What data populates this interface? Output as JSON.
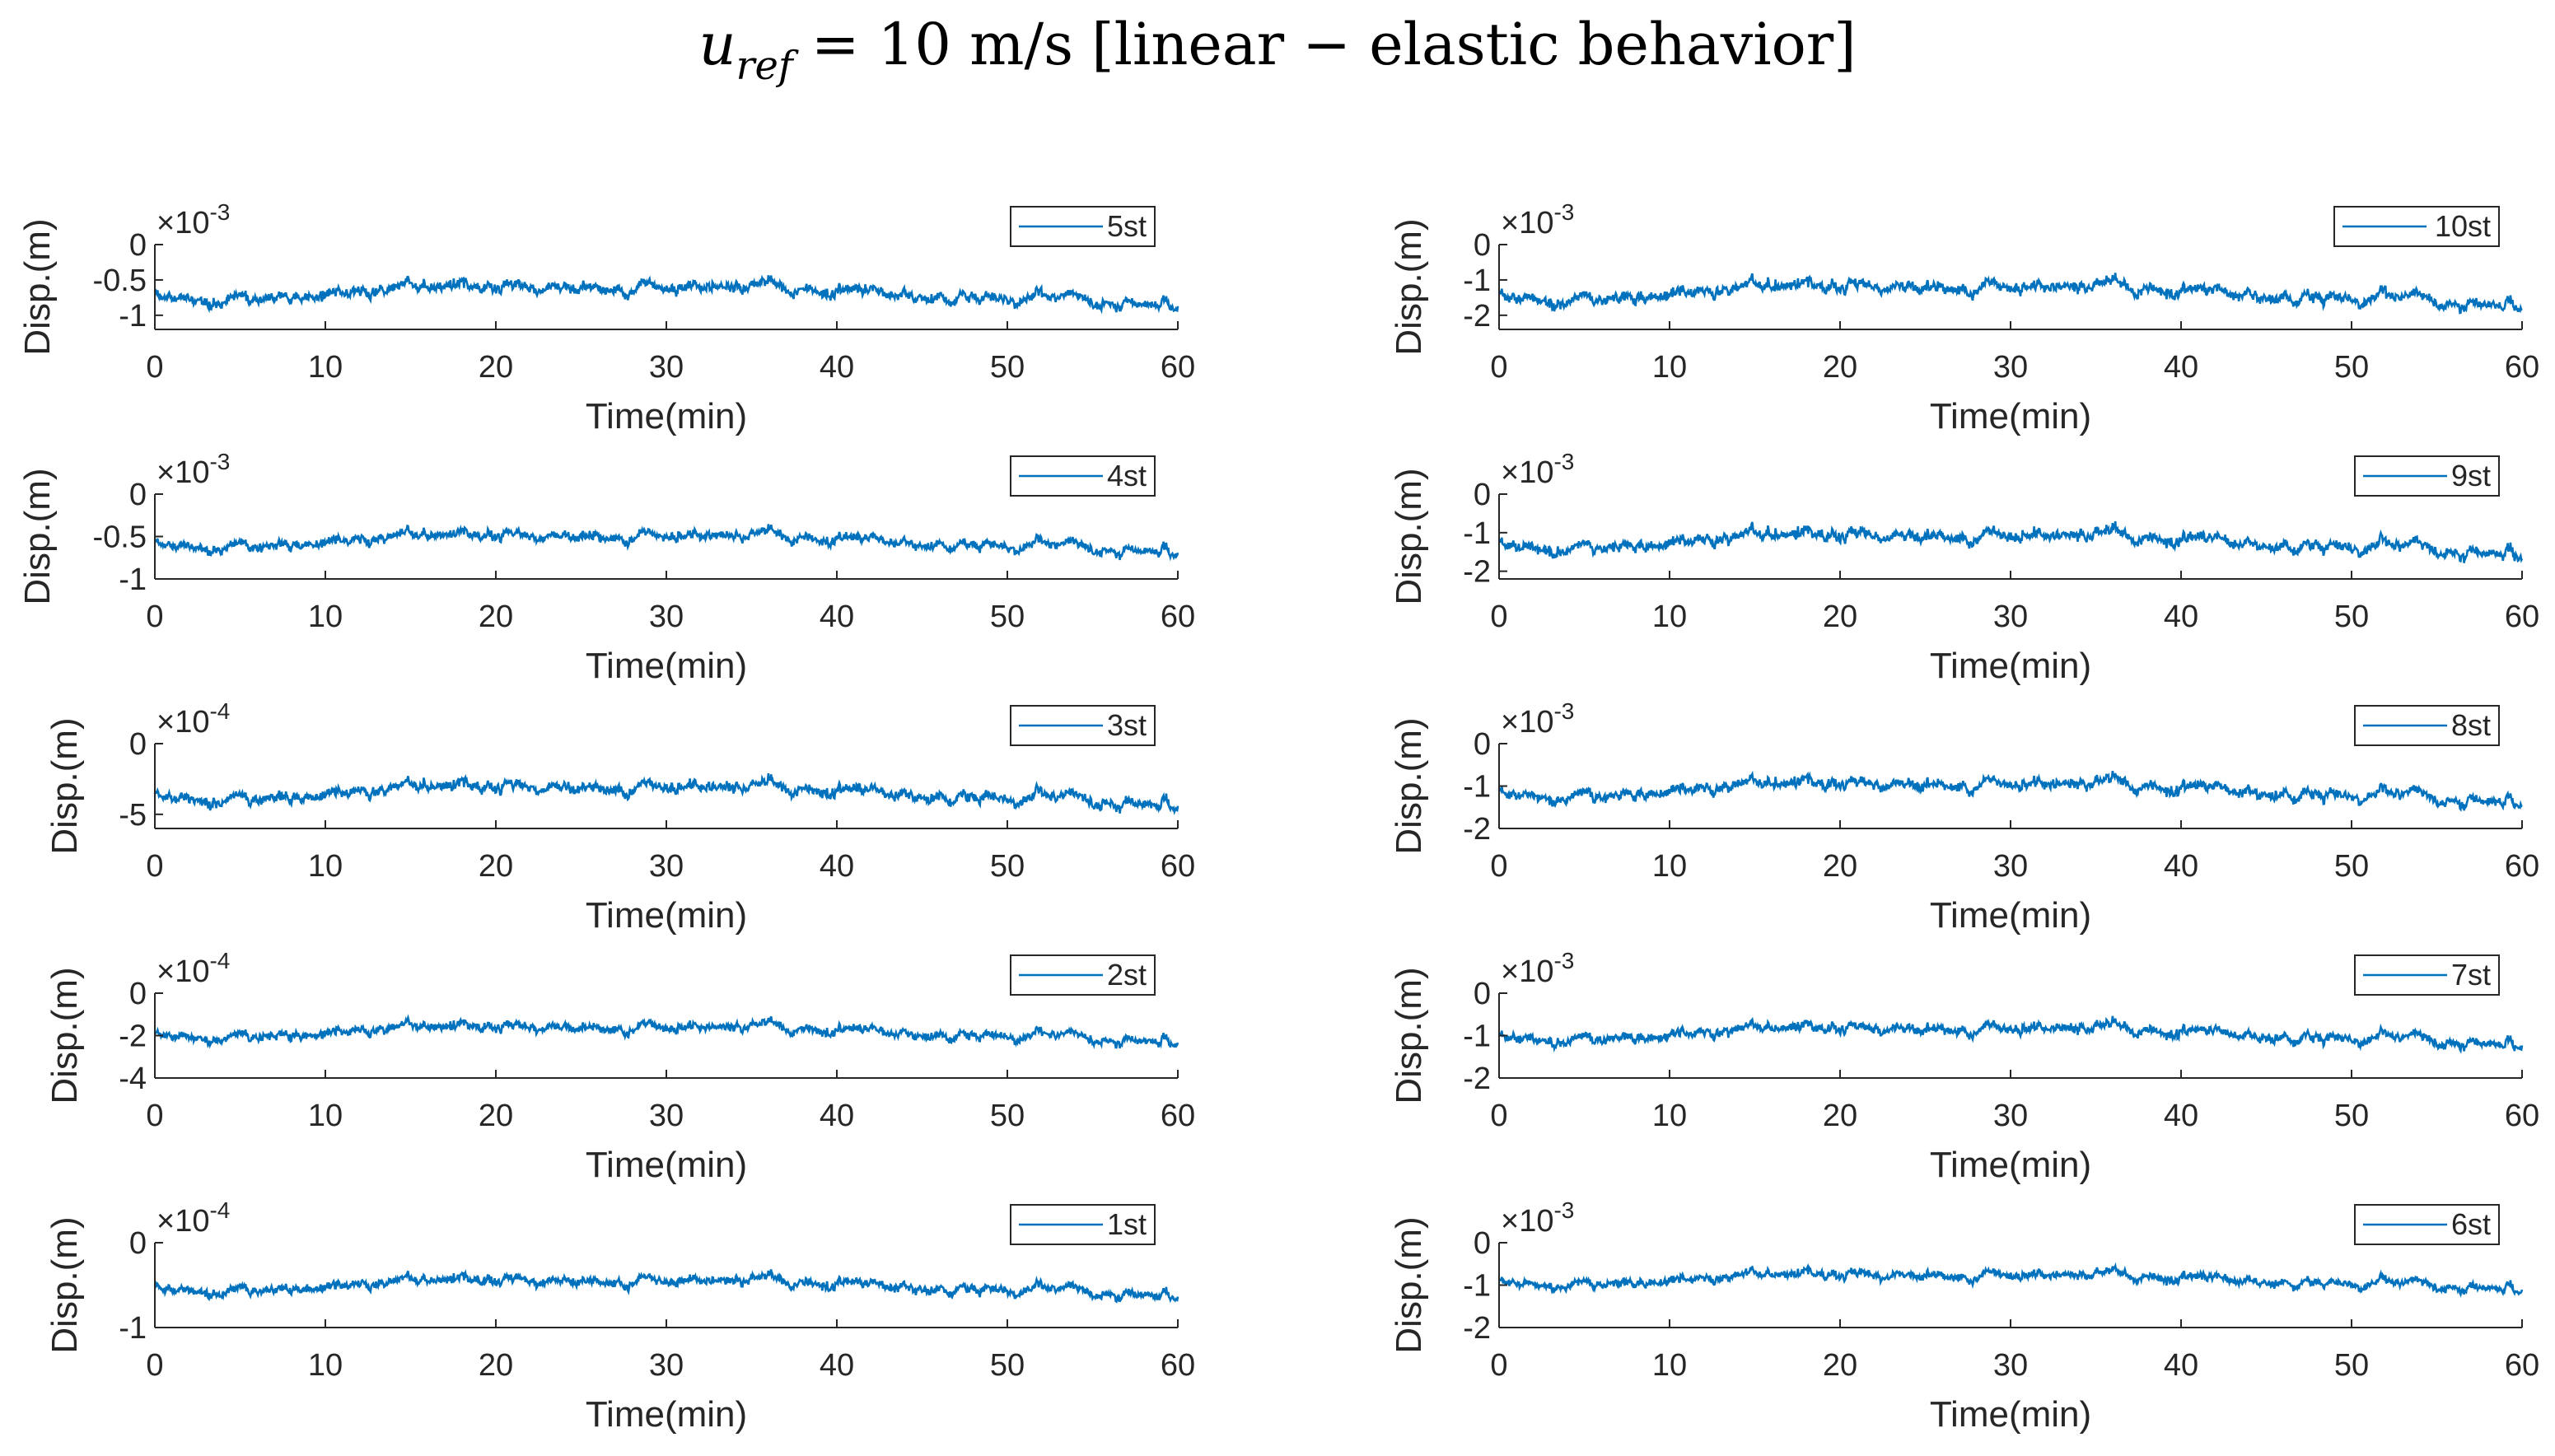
{
  "figure": {
    "title_var": "u",
    "title_sub": "ref",
    "title_rest": " = 10 m/s [linear − elastic behavior]"
  },
  "colors": {
    "series": "#0072bd",
    "axis": "#262626",
    "text": "#262626",
    "legend_border": "#262626"
  },
  "chart_data": [
    {
      "type": "line",
      "legend": "5st",
      "xlabel": "Time(min)",
      "ylabel": "Disp.(m)",
      "exponent": "-3",
      "xlim": [
        0,
        60
      ],
      "ylim": [
        -1.2,
        0
      ],
      "xticks": [
        0,
        10,
        20,
        30,
        40,
        50,
        60
      ],
      "yticks": [
        {
          "v": 0,
          "label": "0"
        },
        {
          "v": -0.5,
          "label": "-0.5"
        },
        {
          "v": -1,
          "label": "-1"
        }
      ],
      "mean": -0.75,
      "amp": 0.2,
      "seed": 5
    },
    {
      "type": "line",
      "legend": "10st",
      "xlabel": "Time(min)",
      "ylabel": "Disp.(m)",
      "exponent": "-3",
      "xlim": [
        0,
        60
      ],
      "ylim": [
        -2.4,
        0
      ],
      "xticks": [
        0,
        10,
        20,
        30,
        40,
        50,
        60
      ],
      "yticks": [
        {
          "v": 0,
          "label": "0"
        },
        {
          "v": -1,
          "label": "-1"
        },
        {
          "v": -2,
          "label": "-2"
        }
      ],
      "mean": -1.5,
      "amp": 0.42,
      "seed": 10
    },
    {
      "type": "line",
      "legend": "4st",
      "xlabel": "Time(min)",
      "ylabel": "Disp.(m)",
      "exponent": "-3",
      "xlim": [
        0,
        60
      ],
      "ylim": [
        -1.0,
        0
      ],
      "xticks": [
        0,
        10,
        20,
        30,
        40,
        50,
        60
      ],
      "yticks": [
        {
          "v": 0,
          "label": "0"
        },
        {
          "v": -0.5,
          "label": "-0.5"
        },
        {
          "v": -1,
          "label": "-1"
        }
      ],
      "mean": -0.6,
      "amp": 0.15,
      "seed": 4
    },
    {
      "type": "line",
      "legend": "9st",
      "xlabel": "Time(min)",
      "ylabel": "Disp.(m)",
      "exponent": "-3",
      "xlim": [
        0,
        60
      ],
      "ylim": [
        -2.2,
        0
      ],
      "xticks": [
        0,
        10,
        20,
        30,
        40,
        50,
        60
      ],
      "yticks": [
        {
          "v": 0,
          "label": "0"
        },
        {
          "v": -1,
          "label": "-1"
        },
        {
          "v": -2,
          "label": "-2"
        }
      ],
      "mean": -1.35,
      "amp": 0.38,
      "seed": 9
    },
    {
      "type": "line",
      "legend": "3st",
      "xlabel": "Time(min)",
      "ylabel": "Disp.(m)",
      "exponent": "-4",
      "xlim": [
        0,
        60
      ],
      "ylim": [
        -6,
        0
      ],
      "xticks": [
        0,
        10,
        20,
        30,
        40,
        50,
        60
      ],
      "yticks": [
        {
          "v": 0,
          "label": "0"
        },
        {
          "v": -5,
          "label": "-5"
        }
      ],
      "mean": -3.8,
      "amp": 1.0,
      "seed": 3
    },
    {
      "type": "line",
      "legend": "8st",
      "xlabel": "Time(min)",
      "ylabel": "Disp.(m)",
      "exponent": "-3",
      "xlim": [
        0,
        60
      ],
      "ylim": [
        -2.0,
        0
      ],
      "xticks": [
        0,
        10,
        20,
        30,
        40,
        50,
        60
      ],
      "yticks": [
        {
          "v": 0,
          "label": "0"
        },
        {
          "v": -1,
          "label": "-1"
        },
        {
          "v": -2,
          "label": "-2"
        }
      ],
      "mean": -1.2,
      "amp": 0.34,
      "seed": 8
    },
    {
      "type": "line",
      "legend": "2st",
      "xlabel": "Time(min)",
      "ylabel": "Disp.(m)",
      "exponent": "-4",
      "xlim": [
        0,
        60
      ],
      "ylim": [
        -4,
        0
      ],
      "xticks": [
        0,
        10,
        20,
        30,
        40,
        50,
        60
      ],
      "yticks": [
        {
          "v": 0,
          "label": "0"
        },
        {
          "v": -2,
          "label": "-2"
        },
        {
          "v": -4,
          "label": "-4"
        }
      ],
      "mean": -2.0,
      "amp": 0.55,
      "seed": 2
    },
    {
      "type": "line",
      "legend": "7st",
      "xlabel": "Time(min)",
      "ylabel": "Disp.(m)",
      "exponent": "-3",
      "xlim": [
        0,
        60
      ],
      "ylim": [
        -2.0,
        0
      ],
      "xticks": [
        0,
        10,
        20,
        30,
        40,
        50,
        60
      ],
      "yticks": [
        {
          "v": 0,
          "label": "0"
        },
        {
          "v": -1,
          "label": "-1"
        },
        {
          "v": -2,
          "label": "-2"
        }
      ],
      "mean": -1.05,
      "amp": 0.3,
      "seed": 7
    },
    {
      "type": "line",
      "legend": "1st",
      "xlabel": "Time(min)",
      "ylabel": "Disp.(m)",
      "exponent": "-4",
      "xlim": [
        0,
        60
      ],
      "ylim": [
        -1,
        0
      ],
      "xticks": [
        0,
        10,
        20,
        30,
        40,
        50,
        60
      ],
      "yticks": [
        {
          "v": 0,
          "label": "0"
        },
        {
          "v": -1,
          "label": "-1"
        }
      ],
      "mean": -0.55,
      "amp": 0.14,
      "seed": 1
    },
    {
      "type": "line",
      "legend": "6st",
      "xlabel": "Time(min)",
      "ylabel": "Disp.(m)",
      "exponent": "-3",
      "xlim": [
        0,
        60
      ],
      "ylim": [
        -2.0,
        0
      ],
      "xticks": [
        0,
        10,
        20,
        30,
        40,
        50,
        60
      ],
      "yticks": [
        {
          "v": 0,
          "label": "0"
        },
        {
          "v": -1,
          "label": "-1"
        },
        {
          "v": -2,
          "label": "-2"
        }
      ],
      "mean": -0.95,
      "amp": 0.26,
      "seed": 6
    }
  ]
}
